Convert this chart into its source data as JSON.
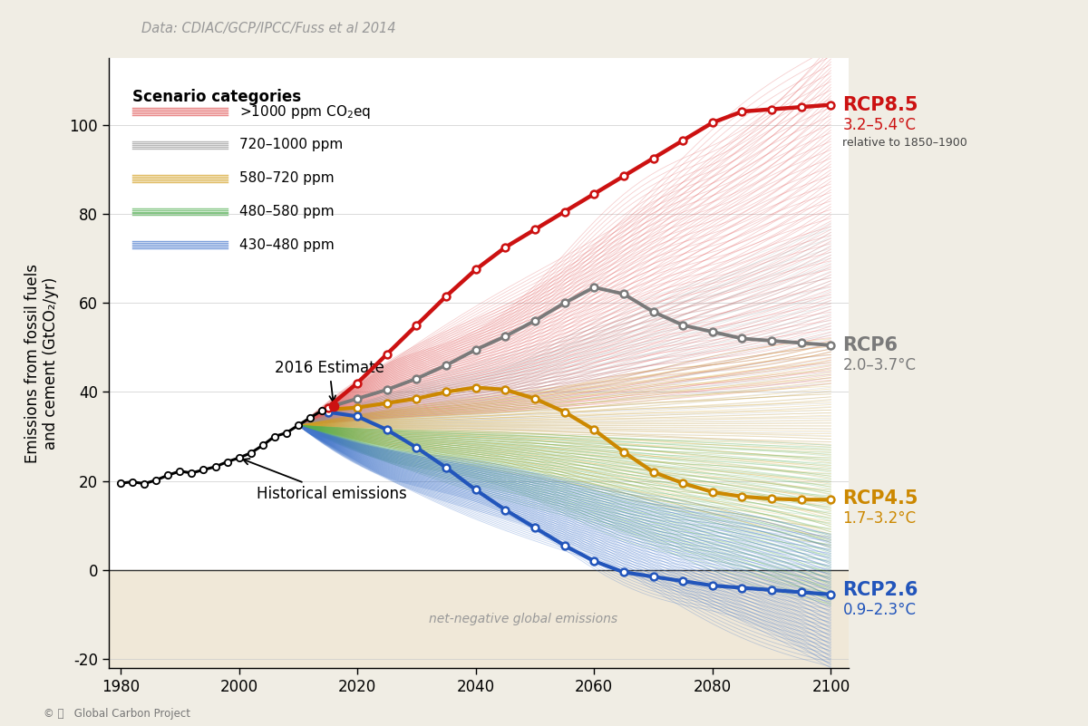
{
  "title": "Data: CDIAC/GCP/IPCC/Fuss et al 2014",
  "ylabel": "Emissions from fossil fuels\nand cement (GtCO₂/yr)",
  "bg_color": "#f0ede4",
  "plot_bg": "#ffffff",
  "net_neg_color": "#f0e8d8",
  "xlim": [
    1978,
    2103
  ],
  "ylim": [
    -22,
    115
  ],
  "xticks": [
    1980,
    2000,
    2020,
    2040,
    2060,
    2080,
    2100
  ],
  "yticks": [
    -20,
    0,
    20,
    40,
    60,
    80,
    100
  ],
  "historical_years": [
    1980,
    1982,
    1984,
    1986,
    1988,
    1990,
    1992,
    1994,
    1996,
    1998,
    2000,
    2002,
    2004,
    2006,
    2008,
    2010,
    2012,
    2014
  ],
  "historical_values": [
    19.5,
    19.8,
    19.4,
    20.2,
    21.3,
    22.2,
    21.8,
    22.5,
    23.2,
    24.3,
    25.2,
    26.3,
    28.0,
    30.0,
    30.8,
    32.5,
    34.2,
    35.8
  ],
  "estimate_2016_x": 2016,
  "estimate_2016_y": 36.8,
  "rcp85_years": [
    2015,
    2020,
    2025,
    2030,
    2035,
    2040,
    2045,
    2050,
    2055,
    2060,
    2065,
    2070,
    2075,
    2080,
    2085,
    2090,
    2095,
    2100
  ],
  "rcp85_values": [
    36.5,
    42.0,
    48.5,
    55.0,
    61.5,
    67.5,
    72.5,
    76.5,
    80.5,
    84.5,
    88.5,
    92.5,
    96.5,
    100.5,
    103.0,
    103.5,
    104.0,
    104.5
  ],
  "rcp85_color": "#cc1111",
  "rcp6_years": [
    2015,
    2020,
    2025,
    2030,
    2035,
    2040,
    2045,
    2050,
    2055,
    2060,
    2065,
    2070,
    2075,
    2080,
    2085,
    2090,
    2095,
    2100
  ],
  "rcp6_values": [
    36.5,
    38.5,
    40.5,
    43.0,
    46.0,
    49.5,
    52.5,
    56.0,
    60.0,
    63.5,
    62.0,
    58.0,
    55.0,
    53.5,
    52.0,
    51.5,
    51.0,
    50.5
  ],
  "rcp6_color": "#7a7a7a",
  "rcp45_years": [
    2015,
    2020,
    2025,
    2030,
    2035,
    2040,
    2045,
    2050,
    2055,
    2060,
    2065,
    2070,
    2075,
    2080,
    2085,
    2090,
    2095,
    2100
  ],
  "rcp45_values": [
    36.0,
    36.5,
    37.5,
    38.5,
    40.0,
    41.0,
    40.5,
    38.5,
    35.5,
    31.5,
    26.5,
    22.0,
    19.5,
    17.5,
    16.5,
    16.0,
    15.8,
    15.8
  ],
  "rcp45_color": "#cc8800",
  "rcp26_years": [
    2015,
    2020,
    2025,
    2030,
    2035,
    2040,
    2045,
    2050,
    2055,
    2060,
    2065,
    2070,
    2075,
    2080,
    2085,
    2090,
    2095,
    2100
  ],
  "rcp26_values": [
    35.5,
    34.5,
    31.5,
    27.5,
    23.0,
    18.0,
    13.5,
    9.5,
    5.5,
    2.0,
    -0.5,
    -1.5,
    -2.5,
    -3.5,
    -4.0,
    -4.5,
    -5.0,
    -5.5
  ],
  "rcp26_color": "#2255bb",
  "footer_text": "Global Carbon Project"
}
